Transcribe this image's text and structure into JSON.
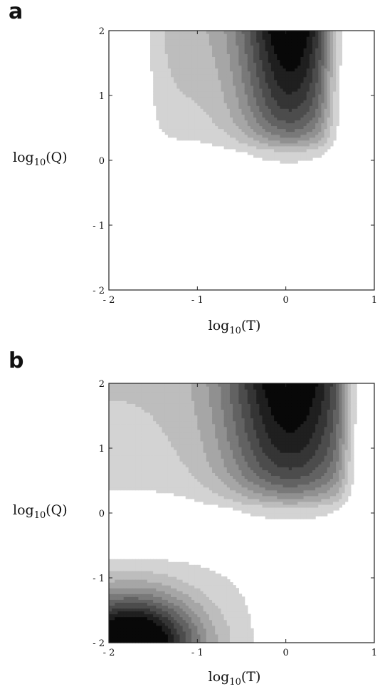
{
  "chart_data": [
    {
      "panel": "a",
      "type": "contour",
      "xlabel": "log10(T)",
      "ylabel": "log10(Q)",
      "xlim": [
        -2,
        1
      ],
      "ylim": [
        -2,
        2
      ],
      "x_ticks": [
        -2,
        -1,
        0,
        1
      ],
      "y_ticks": [
        -2,
        -1,
        0,
        1,
        2
      ],
      "x_tick_labels": [
        "- 2",
        "- 1",
        "0",
        "1"
      ],
      "y_tick_labels": [
        "- 2",
        "- 1",
        "0",
        "1",
        "2"
      ],
      "colormap": "grayscale, light = low, dark = high",
      "grid": false,
      "legend": "none"
    },
    {
      "panel": "b",
      "type": "contour",
      "xlabel": "log10(T)",
      "ylabel": "log10(Q)",
      "xlim": [
        -2,
        1
      ],
      "ylim": [
        -2,
        2
      ],
      "x_ticks": [
        -2,
        -1,
        0,
        1
      ],
      "y_ticks": [
        -2,
        -1,
        0,
        1,
        2
      ],
      "x_tick_labels": [
        "- 2",
        "- 1",
        "0",
        "1"
      ],
      "y_tick_labels": [
        "- 2",
        "- 1",
        "0",
        "1",
        "2"
      ],
      "colormap": "grayscale, light = low, dark = high",
      "grid": false,
      "legend": "none"
    }
  ],
  "panels": [
    {
      "letter": "a",
      "xlabel_base": "log",
      "xlabel_sub": "10",
      "xlabel_arg": "(T)",
      "ylabel_base": "log",
      "ylabel_sub": "10",
      "ylabel_arg": "(Q)"
    },
    {
      "letter": "b",
      "xlabel_base": "log",
      "xlabel_sub": "10",
      "xlabel_arg": "(T)",
      "ylabel_base": "log",
      "ylabel_sub": "10",
      "ylabel_arg": "(Q)"
    }
  ]
}
